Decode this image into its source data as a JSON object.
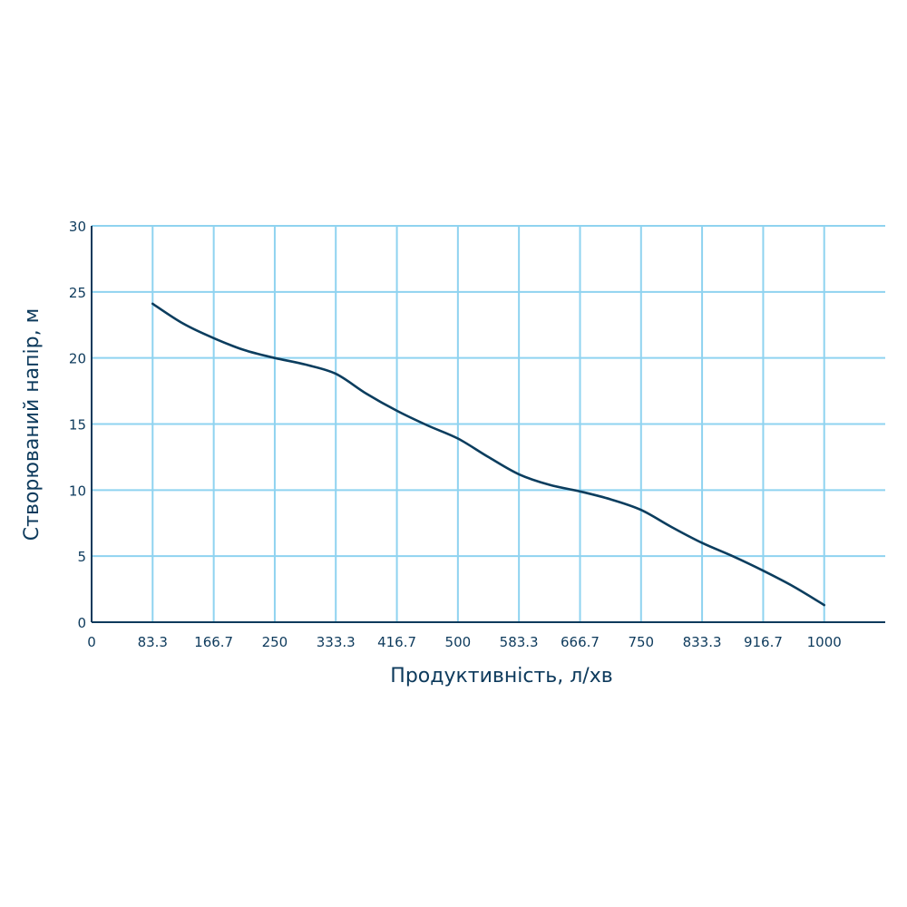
{
  "chart_data": {
    "type": "line",
    "xlabel": "Продуктивність, л/хв",
    "ylabel": "Створюваний напір, м",
    "x_ticks": [
      "0",
      "83.3",
      "166.7",
      "250",
      "333.3",
      "416.7",
      "500",
      "583.3",
      "666.7",
      "750",
      "833.3",
      "916.7",
      "1000"
    ],
    "y_ticks": [
      "0",
      "5",
      "10",
      "15",
      "20",
      "25",
      "30"
    ],
    "xlim": [
      0,
      1083.3
    ],
    "ylim": [
      0,
      30
    ],
    "grid": true,
    "series": [
      {
        "x": [
          83.3,
          125,
          166.7,
          208.3,
          250,
          291.7,
          333.3,
          375,
          416.7,
          458.3,
          500,
          541.7,
          583.3,
          625,
          666.7,
          708.3,
          750,
          791.7,
          833.3,
          875,
          916.7,
          958.3,
          1000
        ],
        "y": [
          24.1,
          22.6,
          21.5,
          20.6,
          20.0,
          19.5,
          18.8,
          17.3,
          16.0,
          14.9,
          13.9,
          12.5,
          11.2,
          10.4,
          9.9,
          9.3,
          8.5,
          7.2,
          6.0,
          5.0,
          3.9,
          2.7,
          1.3
        ]
      }
    ],
    "colors": {
      "grid": "#8fd3f0",
      "axis": "#0d3a5c",
      "line": "#0b3d5e",
      "text": "#0d3a5c"
    }
  }
}
